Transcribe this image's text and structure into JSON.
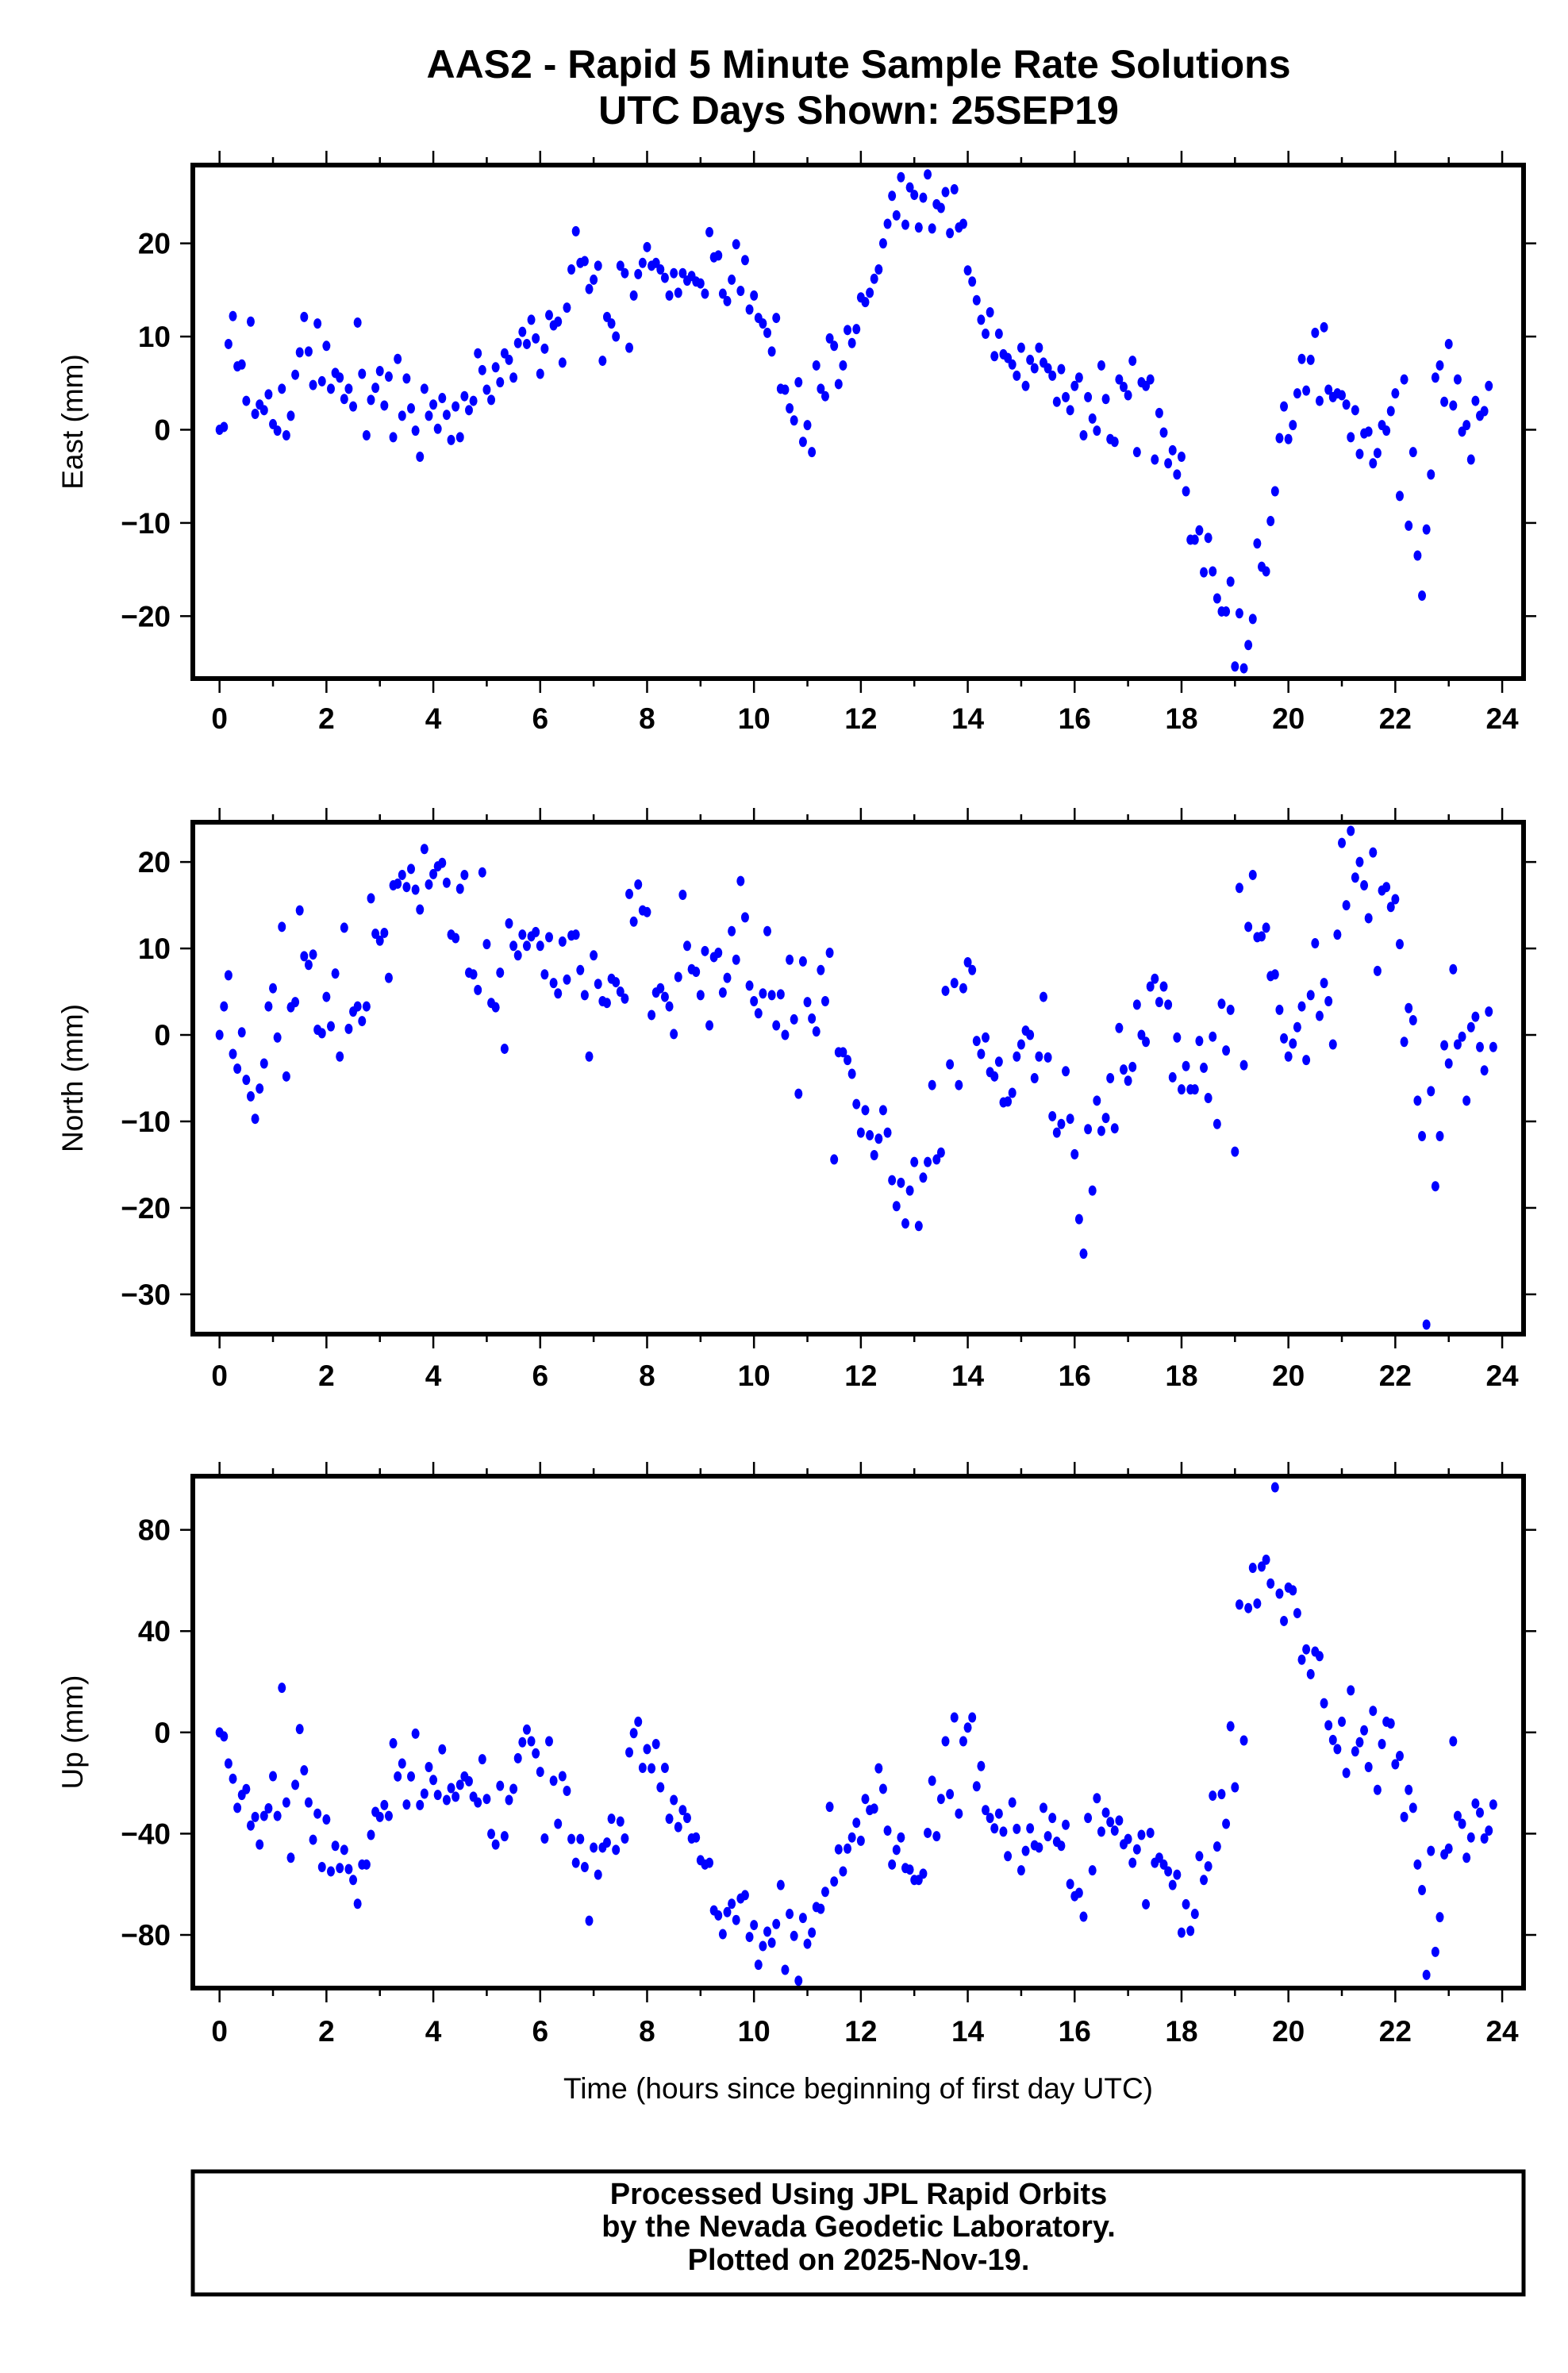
{
  "title_line1": "AAS2 - Rapid 5 Minute Sample Rate Solutions",
  "title_line2": "UTC Days Shown:  25SEP19",
  "footer": {
    "line1": "Processed Using JPL Rapid Orbits",
    "line2": "by the Nevada Geodetic Laboratory.",
    "line3": "Plotted on 2025-Nov-19."
  },
  "colors": {
    "points": "#0000ff",
    "frame": "#000000"
  },
  "chart_data": [
    {
      "type": "scatter",
      "name": "east",
      "ylabel": "East (mm)",
      "xlabel": "",
      "x_start_hours": 0,
      "x_step_hours": 0.0833333,
      "xlim": [
        -0.5,
        24.4
      ],
      "ylim": [
        -26.7,
        28.4
      ],
      "xticks": [
        "0",
        "2",
        "4",
        "6",
        "8",
        "10",
        "12",
        "14",
        "16",
        "18",
        "20",
        "22",
        "24"
      ],
      "yticks": [
        {
          "v": 20,
          "label": "20"
        },
        {
          "v": 10,
          "label": "10"
        },
        {
          "v": 0,
          "label": "0"
        },
        {
          "v": -10,
          "label": "−10"
        },
        {
          "v": -20,
          "label": "−20"
        }
      ],
      "values": [
        0,
        0.3,
        9.2,
        12.2,
        6.8,
        7,
        3.1,
        11.6,
        1.7,
        2.7,
        2.1,
        3.8,
        0.6,
        -0.1,
        4.4,
        -0.6,
        1.5,
        5.9,
        8.3,
        12.1,
        8.4,
        4.8,
        11.4,
        5.2,
        9,
        4.4,
        6.1,
        5.6,
        3.3,
        4.4,
        2.5,
        11.5,
        6,
        -0.6,
        3.2,
        4.5,
        6.3,
        2.6,
        5.7,
        -0.8,
        7.6,
        1.5,
        5.5,
        2.3,
        -0.1,
        -2.9,
        4.4,
        1.5,
        2.7,
        0.1,
        3.4,
        1.6,
        -1.1,
        2.5,
        -0.8,
        3.6,
        2.1,
        3.1,
        8.2,
        6.4,
        4.3,
        3.2,
        6.7,
        5.1,
        8.2,
        7.5,
        5.6,
        9.3,
        10.5,
        9.2,
        11.8,
        9.8,
        6,
        8.7,
        12.3,
        11.2,
        11.6,
        7.2,
        13.1,
        17.2,
        21.3,
        17.9,
        18.1,
        15.1,
        16.1,
        17.6,
        7.4,
        12.1,
        11.4,
        10,
        17.6,
        16.8,
        8.8,
        14.4,
        16.7,
        17.9,
        19.6,
        17.6,
        17.9,
        17.2,
        16.3,
        14.4,
        16.8,
        14.7,
        16.8,
        16,
        16.5,
        15.9,
        15.7,
        14.6,
        21.2,
        18.5,
        18.7,
        14.6,
        13.8,
        16.1,
        19.9,
        14.9,
        18.2,
        12.9,
        14.4,
        12,
        11.4,
        10.4,
        8.4,
        12,
        4.4,
        4.3,
        2.3,
        1,
        5.1,
        -1.3,
        0.5,
        -2.4,
        6.9,
        4.4,
        3.6,
        9.8,
        9,
        4.9,
        6.9,
        10.7,
        9.3,
        10.8,
        14.2,
        13.7,
        14.7,
        16.2,
        17.2,
        20,
        22.1,
        25.1,
        23,
        27.1,
        22,
        26,
        25.2,
        21.7,
        24.9,
        27.4,
        21.6,
        24.2,
        23.8,
        25.5,
        21.1,
        25.8,
        21.7,
        22.1,
        17.1,
        15.9,
        13.9,
        11.8,
        10.3,
        12.6,
        7.9,
        10.3,
        8.1,
        7.7,
        7.0,
        5.8,
        8.8,
        4.7,
        7.5,
        6.6,
        8.8,
        7.2,
        6.6,
        5.8,
        3,
        6.5,
        3.5,
        2.1,
        4.7,
        5.6,
        -0.6,
        3.5,
        1.2,
        -0.1,
        6.9,
        3.3,
        -1,
        -1.3,
        5.4,
        4.6,
        3.7,
        7.4,
        -2.4,
        5.1,
        4.7,
        5.4,
        -3.2,
        1.8,
        -0.3,
        -3.6,
        -2.2,
        -4.8,
        -2.9,
        -6.6,
        -11.8,
        -11.8,
        -10.8,
        -15.3,
        -11.6,
        -15.2,
        -18.1,
        -19.5,
        -19.5,
        -16.3,
        -25.4,
        -19.7,
        -25.6,
        -23.1,
        -20.3,
        -12.2,
        -14.7,
        -15.2,
        -9.8,
        -6.6,
        -0.9,
        2.5,
        -1,
        0.5,
        3.9,
        7.6,
        4.2,
        7.5,
        10.4,
        3.1,
        11,
        4.3,
        3.5,
        3.9,
        3.7,
        2.7,
        -0.8,
        2.1,
        -2.6,
        -0.4,
        -0.2,
        -3.6,
        -2.5,
        0.5,
        -0.1,
        2,
        3.9,
        -7.1,
        5.4,
        -10.3,
        -2.4,
        -13.5,
        -17.8,
        -10.7,
        -4.8,
        5.6,
        6.9,
        3,
        9.2,
        2.6,
        5.4,
        -0.2,
        0.5,
        -3.2,
        3.1,
        1.5,
        2,
        4.7
      ]
    },
    {
      "type": "scatter",
      "name": "north",
      "ylabel": "North (mm)",
      "xlabel": "",
      "x_start_hours": 0,
      "x_step_hours": 0.0833333,
      "xlim": [
        -0.5,
        24.4
      ],
      "ylim": [
        -34.6,
        24.6
      ],
      "xticks": [
        "0",
        "2",
        "4",
        "6",
        "8",
        "10",
        "12",
        "14",
        "16",
        "18",
        "20",
        "22",
        "24"
      ],
      "yticks": [
        {
          "v": 20,
          "label": "20"
        },
        {
          "v": 10,
          "label": "10"
        },
        {
          "v": 0,
          "label": "0"
        },
        {
          "v": -10,
          "label": "−10"
        },
        {
          "v": -20,
          "label": "−20"
        },
        {
          "v": -30,
          "label": "−30"
        }
      ],
      "values": [
        0,
        3.3,
        6.9,
        -2.2,
        -3.9,
        0.3,
        -5.2,
        -7.1,
        -9.7,
        -6.2,
        -3.3,
        3.3,
        5.4,
        -0.3,
        12.5,
        -4.8,
        3.2,
        3.8,
        14.4,
        9.1,
        8.1,
        9.3,
        0.6,
        0.2,
        4.4,
        1,
        7.1,
        -2.5,
        12.4,
        0.7,
        2.7,
        3.3,
        1.6,
        3.3,
        15.8,
        11.7,
        10.9,
        11.8,
        6.6,
        17.3,
        17.5,
        18.5,
        17.1,
        19.2,
        16.8,
        14.5,
        21.5,
        17.4,
        18.6,
        19.5,
        19.9,
        17.6,
        11.6,
        11.2,
        16.9,
        18.5,
        7.2,
        7,
        5.2,
        18.8,
        10.5,
        3.7,
        3.2,
        7.2,
        -1.6,
        12.9,
        10.3,
        9.2,
        11.6,
        10.3,
        11.4,
        11.9,
        10.3,
        7,
        11.3,
        6,
        4.8,
        10.8,
        6.4,
        11.5,
        11.6,
        7.5,
        4.6,
        -2.5,
        9.2,
        5.9,
        3.9,
        3.7,
        6.5,
        6.1,
        5,
        4.2,
        16.3,
        13.1,
        17.4,
        14.4,
        14.2,
        2.3,
        4.9,
        5.4,
        4.4,
        3.3,
        0.1,
        6.7,
        16.2,
        10.3,
        7.6,
        7.3,
        4.6,
        9.7,
        1.1,
        9,
        9.5,
        4.9,
        6.6,
        12,
        8.7,
        17.8,
        13.6,
        5.7,
        3.9,
        2.5,
        4.8,
        12,
        4.6,
        1.1,
        4.7,
        0,
        8.7,
        1.8,
        -6.8,
        8.5,
        3.8,
        1.9,
        0.4,
        7.5,
        3.9,
        9.5,
        -14.4,
        -2,
        -2,
        -2.9,
        -4.5,
        -8,
        -11.3,
        -8.7,
        -11.6,
        -13.9,
        -12,
        -8.7,
        -11.3,
        -16.8,
        -19.8,
        -17.1,
        -21.8,
        -18,
        -14.7,
        -22.1,
        -16.5,
        -14.7,
        -5.8,
        -14.4,
        -13.6,
        5.1,
        -3.4,
        6,
        -5.8,
        5.4,
        8.4,
        7.5,
        -0.7,
        -2.2,
        -0.3,
        -4.3,
        -4.8,
        -3.1,
        -7.8,
        -7.7,
        -6.7,
        -2.5,
        -1.1,
        0.5,
        0,
        -5,
        -2.5,
        4.4,
        -2.6,
        -9.4,
        -11.3,
        -10.3,
        -4.2,
        -9.7,
        -13.8,
        -21.3,
        -25.3,
        -10.9,
        -18,
        -7.6,
        -11.1,
        -9.6,
        -5,
        -10.8,
        0.8,
        -4,
        -5.3,
        -3.7,
        3.5,
        0,
        -0.8,
        5.6,
        6.5,
        3.8,
        5.6,
        3.5,
        -4.9,
        -0.3,
        -6.3,
        -3.6,
        -6.3,
        -6.3,
        -0.7,
        -3.8,
        -7.3,
        -0.2,
        -10.3,
        3.6,
        -1.8,
        2.9,
        -13.5,
        17,
        -3.5,
        12.5,
        18.5,
        11.3,
        11.4,
        12.4,
        6.8,
        7,
        2.9,
        -0.4,
        -2.5,
        -1,
        0.9,
        3.3,
        -2.9,
        4.6,
        10.6,
        2.2,
        6,
        3.9,
        -1.1,
        11.6,
        22.2,
        15,
        23.6,
        18.2,
        20,
        17.3,
        13.5,
        21.1,
        7.4,
        16.7,
        17.1,
        14.8,
        15.7,
        10.5,
        -0.8,
        3.1,
        1.7,
        -7.6,
        -11.7,
        -33.5,
        -6.5,
        -17.5,
        -11.7,
        -1.2,
        -3.3,
        7.6,
        -1.1,
        -0.2,
        -7.6,
        0.9,
        2.1,
        -1.4,
        -4.1,
        2.7,
        -1.4
      ]
    },
    {
      "type": "scatter",
      "name": "up",
      "ylabel": "Up (mm)",
      "xlabel": "Time (hours since beginning of first day UTC)",
      "x_start_hours": 0,
      "x_step_hours": 0.0833333,
      "xlim": [
        -0.5,
        24.4
      ],
      "ylim": [
        -101,
        101.2
      ],
      "xticks": [
        "0",
        "2",
        "4",
        "6",
        "8",
        "10",
        "12",
        "14",
        "16",
        "18",
        "20",
        "22",
        "24"
      ],
      "yticks": [
        {
          "v": 80,
          "label": "80"
        },
        {
          "v": 40,
          "label": "40"
        },
        {
          "v": 0,
          "label": "0"
        },
        {
          "v": -40,
          "label": "−40"
        },
        {
          "v": -80,
          "label": "−80"
        }
      ],
      "values": [
        0,
        -1.6,
        -12.3,
        -18.3,
        -29.8,
        -24.7,
        -22.4,
        -36.8,
        -33.4,
        -44.3,
        -33,
        -30,
        -17.3,
        -33,
        17.6,
        -27.7,
        -49.5,
        -20.7,
        1.3,
        -15,
        -27.7,
        -42.4,
        -32.1,
        -53.2,
        -34.4,
        -54.9,
        -44.8,
        -53.6,
        -46.4,
        -54,
        -58.3,
        -67.7,
        -52.2,
        -52.2,
        -40.5,
        -31.4,
        -33.4,
        -28.7,
        -33,
        -4.3,
        -17.4,
        -12.3,
        -28.5,
        -17.4,
        -0.5,
        -28.7,
        -24.2,
        -13.7,
        -18.8,
        -24.7,
        -6.7,
        -26.7,
        -22,
        -25.4,
        -20.7,
        -17.4,
        -19.3,
        -25.4,
        -27.7,
        -10.6,
        -26.3,
        -40.1,
        -44.3,
        -21.1,
        -41,
        -26.7,
        -22.3,
        -10.2,
        -3.9,
        1.1,
        -3.5,
        -8.3,
        -15.6,
        -41.9,
        -3.5,
        -19.1,
        -36.1,
        -17.3,
        -23.1,
        -42.1,
        -51.5,
        -42.1,
        -53.2,
        -74.4,
        -45.5,
        -56.2,
        -45.5,
        -43.5,
        -34.1,
        -46.4,
        -35.2,
        -41.9,
        -7.9,
        -0.3,
        4.2,
        -14,
        -6.6,
        -14.2,
        -4.6,
        -21.7,
        -14,
        -34.1,
        -26.7,
        -37.4,
        -30.7,
        -33.8,
        -41.9,
        -41.5,
        -50.5,
        -52.2,
        -51.5,
        -70.3,
        -72.3,
        -79.7,
        -71,
        -67.7,
        -74.1,
        -65.6,
        -64.3,
        -80.8,
        -76.1,
        -91.8,
        -84.4,
        -78.7,
        -83.1,
        -75.7,
        -60.3,
        -93.8,
        -71.7,
        -80.4,
        -98.1,
        -73.3,
        -83.5,
        -79.1,
        -69,
        -69.7,
        -63,
        -29.4,
        -58.9,
        -46.2,
        -54.9,
        -45.9,
        -41.5,
        -35.7,
        -42.8,
        -26.3,
        -30.7,
        -30.1,
        -14.2,
        -22.3,
        -38.8,
        -52.2,
        -46.4,
        -41.5,
        -53.6,
        -54.2,
        -58.3,
        -58.3,
        -55.8,
        -39.7,
        -19.1,
        -41,
        -26.3,
        -3.5,
        -24.4,
        5.9,
        -32.1,
        -3.5,
        1.9,
        5.9,
        -21.3,
        -13.3,
        -30.7,
        -33.8,
        -37.9,
        -32.1,
        -39.2,
        -48.9,
        -27.7,
        -38.1,
        -54.5,
        -46.8,
        -37.9,
        -44.6,
        -45.5,
        -29.8,
        -41,
        -33.8,
        -43.2,
        -44.8,
        -36.5,
        -59.9,
        -64.7,
        -63.4,
        -72.8,
        -33.8,
        -54.5,
        -26,
        -39.2,
        -31.7,
        -35.4,
        -38.8,
        -34.8,
        -44.2,
        -42.1,
        -51.5,
        -46.2,
        -40.5,
        -67.9,
        -39.7,
        -51.5,
        -49.5,
        -52.2,
        -54.9,
        -60.3,
        -56.2,
        -79.1,
        -67.9,
        -78.4,
        -71.7,
        -48.9,
        -58.3,
        -52.9,
        -25,
        -45.1,
        -24.4,
        -36.1,
        2.4,
        -21.7,
        50.5,
        -3.2,
        49.1,
        65,
        50.9,
        65.5,
        68.2,
        58.8,
        96.8,
        54.8,
        44,
        57.2,
        56.1,
        47.1,
        28.7,
        32.8,
        23,
        31.9,
        30.1,
        11.5,
        2.8,
        -3,
        -6.6,
        4.2,
        -16,
        16.6,
        -7.5,
        -3.9,
        0.8,
        -13.7,
        8.5,
        -22.7,
        -4.6,
        4.2,
        3.5,
        -12.6,
        -9.3,
        -33.4,
        -22.7,
        -29.8,
        -52.2,
        -62.3,
        -95.8,
        -46.8,
        -86.7,
        -73,
        -48.2,
        -45.9,
        -3.5,
        -33,
        -36.1,
        -49.5,
        -41.5,
        -28.1,
        -31.7,
        -41.9,
        -38.8,
        -28.5
      ]
    }
  ]
}
